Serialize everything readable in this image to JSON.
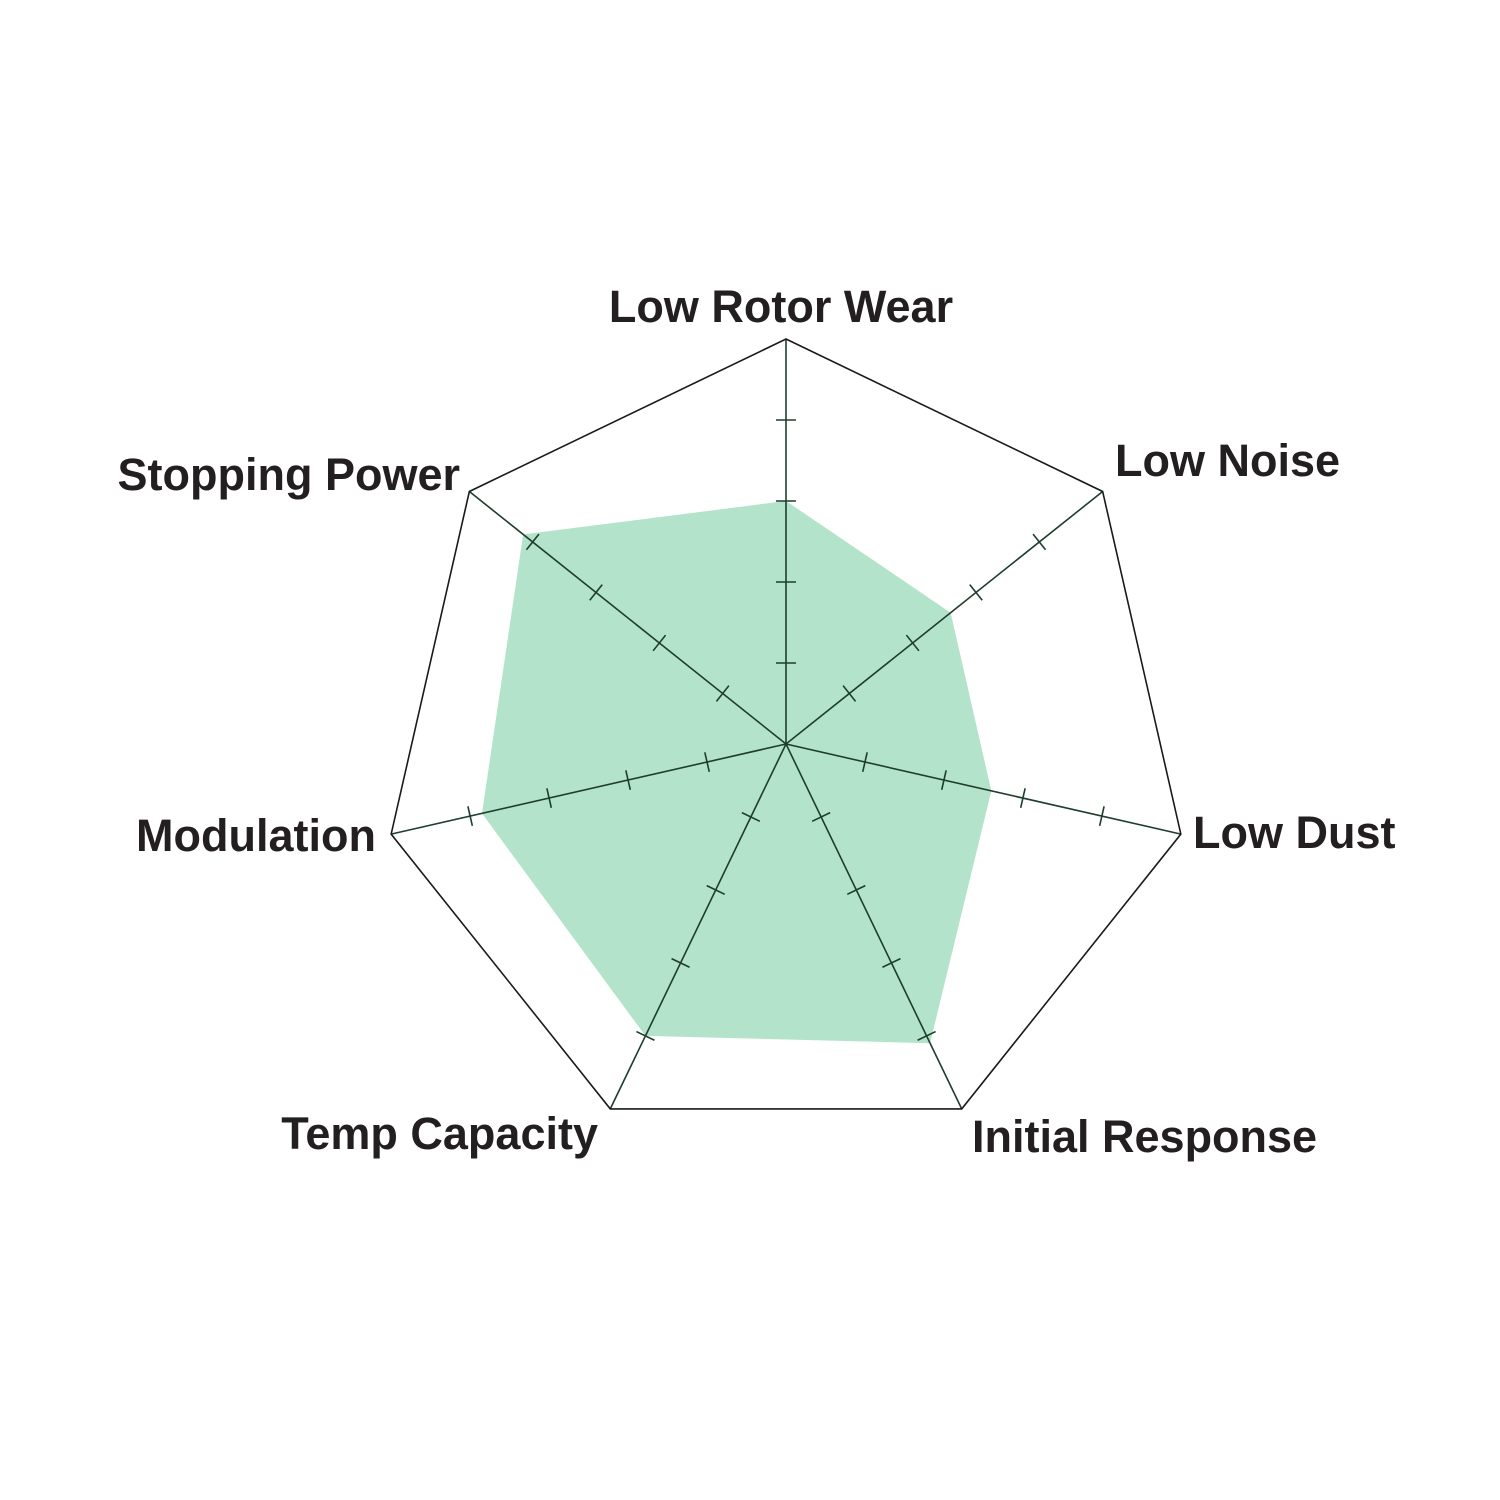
{
  "chart_data": {
    "type": "radar",
    "categories": [
      "Low Rotor Wear",
      "Low Noise",
      "Low Dust",
      "Initial Response",
      "Temp Capacity",
      "Modulation",
      "Stopping Power"
    ],
    "values": [
      3,
      2.6,
      2.6,
      4.1,
      4,
      3.85,
      4.15
    ],
    "rlim": [
      0,
      5
    ],
    "ticks": [
      1,
      2,
      3,
      4
    ],
    "grid": false,
    "legend": "none",
    "colors": {
      "fill": "#b3e3cb",
      "outline": "#1a1a1a",
      "axis": "#1f3d2d"
    }
  }
}
